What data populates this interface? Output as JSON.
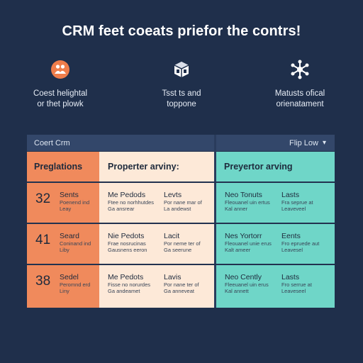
{
  "headline": "CRM feet coeats priefor the contrs!",
  "features": [
    {
      "icon": "team-icon",
      "text": "Coest helightal\nor thet plowk"
    },
    {
      "icon": "cube-icon",
      "text": "Tsst ts and\ntoppone"
    },
    {
      "icon": "network-icon",
      "text": "Matusts ofical\norienatament"
    }
  ],
  "board": {
    "left_bar_label": "Coert Crm",
    "right_bar_label": "Flip Low",
    "columns": [
      "Preglations",
      "Properter arviny:",
      "Preyertor arving"
    ],
    "rows": [
      {
        "number": "32",
        "orange_title": "Sents",
        "orange_sub": [
          "Poenend ind",
          "Leay"
        ],
        "cream_a_title": "Me Pedods",
        "cream_a_sub": [
          "Ftee no norhhutdes",
          "Ga ansrear"
        ],
        "cream_b_title": "Levts",
        "cream_b_sub": [
          "Por nane mar of",
          "La andewst"
        ],
        "teal_a_title": "Neo Tonuts",
        "teal_a_sub": [
          "Fleouanel uin ertus",
          "Kal anner"
        ],
        "teal_b_title": "Lasts",
        "teal_b_sub": [
          "Fra seprue at",
          "Leaveveel"
        ]
      },
      {
        "number": "41",
        "orange_title": "Seard",
        "orange_sub": [
          "Coninand ind",
          "Liby"
        ],
        "cream_a_title": "Nie Pedots",
        "cream_a_sub": [
          "Frae nosrucinas",
          "Gausnens eeron"
        ],
        "cream_b_title": "Lacit",
        "cream_b_sub": [
          "Por neme ter of",
          "Ga seerune"
        ],
        "teal_a_title": "Nes Yortorr",
        "teal_a_sub": [
          "Fleouanel unie erus",
          "Kalt ameer"
        ],
        "teal_b_title": "Eents",
        "teal_b_sub": [
          "Fro epruede aut",
          "Leavesel"
        ]
      },
      {
        "number": "38",
        "orange_title": "Sedel",
        "orange_sub": [
          "Peromnd erd",
          "Liny"
        ],
        "cream_a_title": "Me Pedots",
        "cream_a_sub": [
          "Fisse no norurdes",
          "Ga andeamet"
        ],
        "cream_b_title": "Lavis",
        "cream_b_sub": [
          "Por nane ter of",
          "Ga anneveat"
        ],
        "teal_a_title": "Neo Cently",
        "teal_a_sub": [
          "Fleeuanel uin erus",
          "Kal annett"
        ],
        "teal_b_title": "Lasts",
        "teal_b_sub": [
          "Fro serrue at",
          "Leaveseel"
        ]
      }
    ]
  },
  "colors": {
    "background": "#1f2f4b",
    "orange": "#f08a5c",
    "cream": "#fde9d8",
    "teal": "#6fd6c8",
    "icon_orange": "#ee7d4b"
  }
}
